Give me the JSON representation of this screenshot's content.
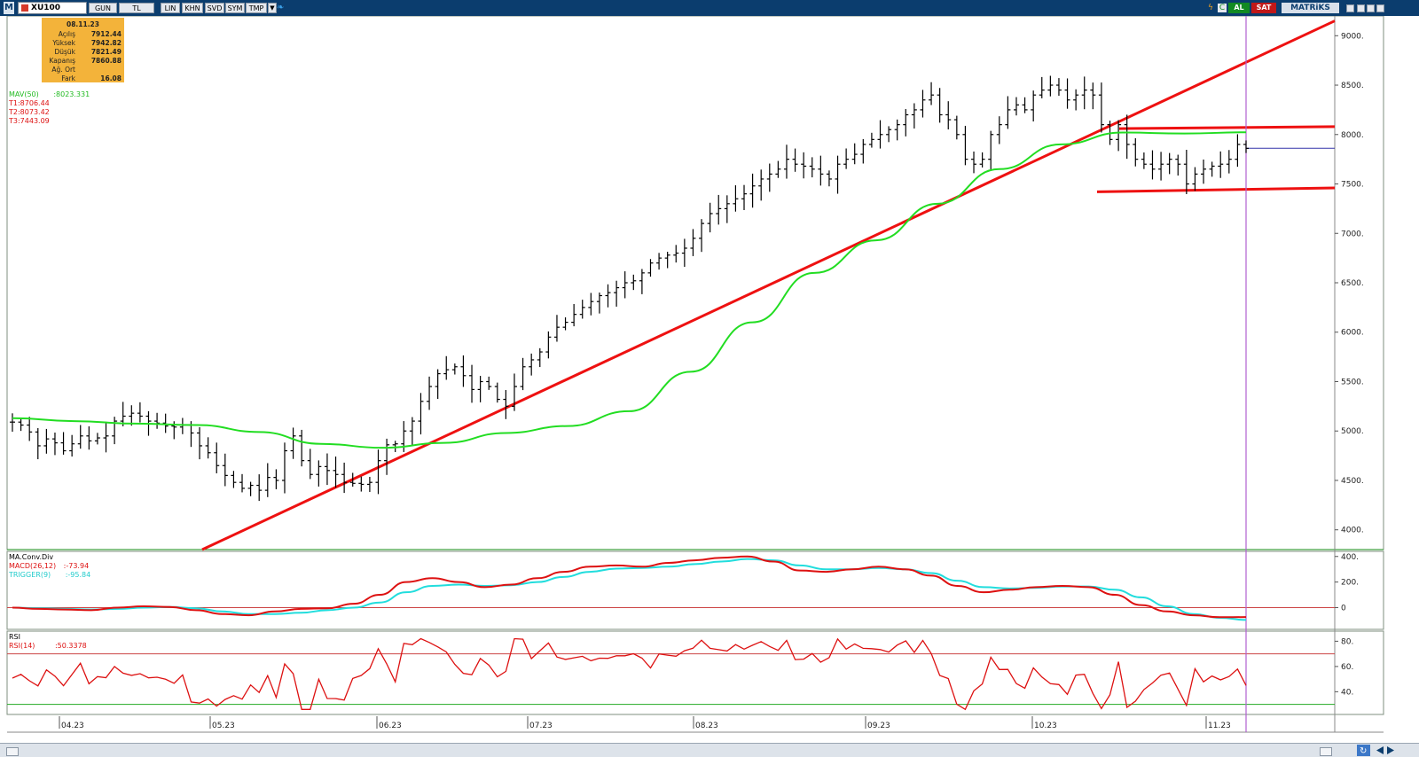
{
  "toolbar": {
    "logo": "M",
    "symbol": "XU100",
    "buttons": [
      "GUN",
      "TL",
      "LIN",
      "KHN",
      "SVD",
      "SYM",
      "TMP"
    ],
    "buy_label": "AL",
    "sell_label": "SAT",
    "brand": "MATRiKS"
  },
  "info_box": {
    "date": "08.11.23",
    "rows": [
      {
        "label": "Açılış",
        "value": "7912.44"
      },
      {
        "label": "Yüksek",
        "value": "7942.82"
      },
      {
        "label": "Düşük",
        "value": "7821.49"
      },
      {
        "label": "Kapanış",
        "value": "7860.88"
      },
      {
        "label": "Ağ. Ort",
        "value": ""
      },
      {
        "label": "Fark",
        "value": "16.08"
      }
    ]
  },
  "legends": {
    "mav": "MAV(50)",
    "mav_value": ":8023.331",
    "t1": "T1:8706.44",
    "t2": "T2:8073.42",
    "t3": "T3:7443.09",
    "macd_title": "MA.Conv.Div",
    "macd": "MACD(26,12)",
    "macd_value": ":-73.94",
    "trigger": "TRIGGER(9)",
    "trigger_value": ":-95.84",
    "rsi_title": "RSI",
    "rsi": "RSI(14)",
    "rsi_value": ":50.3378"
  },
  "colors": {
    "price_bar": "#000000",
    "mav": "#22dd22",
    "trendline": "#ee1111",
    "macd": "#dd1111",
    "trigger": "#22dddd",
    "rsi": "#dd1111",
    "cursor": "#b060d0",
    "titlebar": "#0b3d6e"
  },
  "chart_data": {
    "type": "ohlc",
    "symbol": "XU100",
    "x_tick_labels": [
      "04.23",
      "05.23",
      "06.23",
      "07.23",
      "08.23",
      "09.23",
      "10.23",
      "11.23"
    ],
    "price_ylim": [
      3800,
      9200
    ],
    "price_ticks": [
      "9000.",
      "8500.",
      "8000.",
      "7500.",
      "7000.",
      "6500.",
      "6000.",
      "5500.",
      "5000.",
      "4500.",
      "4000."
    ],
    "macd_ylim": [
      -170,
      440
    ],
    "macd_ticks": [
      "400.",
      "200.",
      "0"
    ],
    "rsi_ylim": [
      22,
      88
    ],
    "rsi_ticks": [
      "80.",
      "60.",
      "40."
    ],
    "rsi_levels": [
      70,
      30
    ],
    "closes": [
      5090,
      5060,
      4990,
      4850,
      4920,
      4880,
      4800,
      4870,
      4950,
      4900,
      4930,
      4950,
      5100,
      5150,
      5180,
      5150,
      5100,
      5080,
      5050,
      5040,
      5060,
      4980,
      4850,
      4780,
      4650,
      4550,
      4480,
      4420,
      4450,
      4400,
      4530,
      4500,
      4800,
      4950,
      4700,
      4560,
      4640,
      4600,
      4560,
      4480,
      4470,
      4460,
      4480,
      4700,
      4860,
      4870,
      5000,
      5100,
      5300,
      5450,
      5580,
      5620,
      5650,
      5560,
      5420,
      5500,
      5450,
      5320,
      5250,
      5450,
      5650,
      5720,
      5800,
      5950,
      6050,
      6100,
      6180,
      6250,
      6310,
      6370,
      6400,
      6450,
      6500,
      6520,
      6600,
      6700,
      6750,
      6780,
      6800,
      6850,
      6950,
      7100,
      7200,
      7250,
      7300,
      7350,
      7400,
      7480,
      7550,
      7600,
      7650,
      7750,
      7700,
      7680,
      7650,
      7600,
      7550,
      7700,
      7750,
      7800,
      7900,
      7950,
      8000,
      8050,
      8100,
      8200,
      8250,
      8350,
      8400,
      8200,
      8150,
      8000,
      7750,
      7700,
      7750,
      8000,
      8100,
      8250,
      8300,
      8250,
      8400,
      8450,
      8500,
      8450,
      8350,
      8400,
      8450,
      8400,
      8100,
      7950,
      8100,
      7900,
      7750,
      7700,
      7650,
      7700,
      7750,
      7700,
      7500,
      7600,
      7650,
      7680,
      7700,
      7750,
      7900,
      7860
    ],
    "mav_start": [
      5130,
      5100,
      5075,
      5060,
      4990,
      4870,
      4830,
      4880,
      4980,
      5050,
      5200,
      5600,
      6100,
      6600,
      6930,
      7300,
      7650,
      7900,
      8020,
      8010,
      8023
    ],
    "trendlines": [
      {
        "name": "T1",
        "from": [
          "04.23+",
          3800
        ],
        "to": [
          "11.23+",
          9150
        ]
      },
      {
        "name": "T2",
        "from": [
          "10.23+",
          8060
        ],
        "to": [
          "11.23+",
          8080
        ]
      },
      {
        "name": "T3",
        "from": [
          "10.23+",
          7420
        ],
        "to": [
          "11.23+",
          7460
        ]
      }
    ],
    "last_close": 7860.88
  }
}
